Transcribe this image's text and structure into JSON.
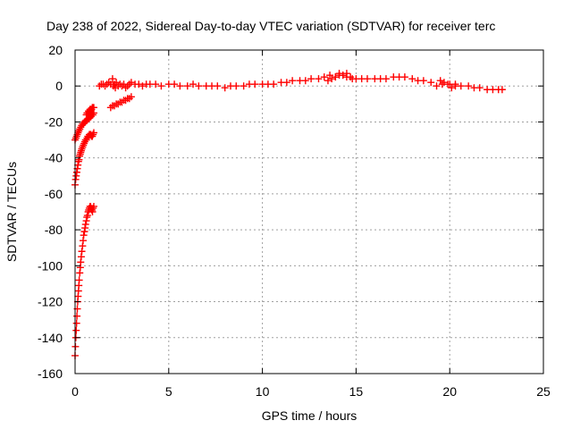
{
  "chart_data": {
    "type": "scatter",
    "title": "Day 238 of 2022, Sidereal Day-to-day VTEC variation (SDTVAR) for receiver terc",
    "xlabel": "GPS time / hours",
    "ylabel": "SDTVAR / TECUs",
    "xlim": [
      0,
      25
    ],
    "ylim": [
      -160,
      20
    ],
    "xticks": [
      0,
      5,
      10,
      15,
      20,
      25
    ],
    "yticks": [
      -160,
      -140,
      -120,
      -100,
      -80,
      -60,
      -40,
      -20,
      0,
      20
    ],
    "grid": true,
    "marker": "+",
    "color": "#ff0000",
    "series": [
      {
        "x": [
          0.0,
          0.02,
          0.04,
          0.06,
          0.08,
          0.1,
          0.12,
          0.14,
          0.16,
          0.18,
          0.2,
          0.22,
          0.25,
          0.28,
          0.3,
          0.33,
          0.36,
          0.4,
          0.43,
          0.46,
          0.5,
          0.53,
          0.56,
          0.6,
          0.63,
          0.66,
          0.7,
          0.73,
          0.76,
          0.8,
          0.83,
          0.86,
          0.9,
          0.93,
          0.96,
          1.0
        ],
        "y": [
          -150,
          -145,
          -140,
          -136,
          -132,
          -128,
          -124,
          -120,
          -117,
          -114,
          -111,
          -108,
          -104,
          -101,
          -98,
          -95,
          -92,
          -89,
          -86,
          -83,
          -81,
          -79,
          -77,
          -75,
          -73,
          -72,
          -70,
          -69,
          -68,
          -67,
          -67,
          -68,
          -69,
          -70,
          -68,
          -67
        ]
      },
      {
        "x": [
          0.0,
          0.03,
          0.06,
          0.09,
          0.12,
          0.15,
          0.18,
          0.21,
          0.24,
          0.27,
          0.3,
          0.33,
          0.36,
          0.4,
          0.44,
          0.48,
          0.52,
          0.56,
          0.6,
          0.64,
          0.68,
          0.72,
          0.76,
          0.8,
          0.84,
          0.88,
          0.92,
          0.96,
          1.0
        ],
        "y": [
          -55,
          -52,
          -50,
          -48,
          -46,
          -44,
          -42,
          -41,
          -39,
          -38,
          -37,
          -36,
          -35,
          -34,
          -33,
          -32,
          -31,
          -30,
          -30,
          -29,
          -28,
          -28,
          -27,
          -27,
          -27,
          -28,
          -28,
          -27,
          -26
        ]
      },
      {
        "x": [
          0.0,
          0.04,
          0.08,
          0.12,
          0.16,
          0.2,
          0.25,
          0.3,
          0.35,
          0.4,
          0.45,
          0.5,
          0.55,
          0.6,
          0.65,
          0.7,
          0.75,
          0.8,
          0.85,
          0.9,
          0.95,
          1.0
        ],
        "y": [
          -30,
          -29,
          -28,
          -27,
          -26,
          -25,
          -24,
          -23,
          -22,
          -21,
          -21,
          -20,
          -20,
          -19,
          -19,
          -18,
          -18,
          -17,
          -17,
          -16,
          -16,
          -15
        ]
      },
      {
        "x": [
          0.6,
          0.64,
          0.68,
          0.72,
          0.76,
          0.8,
          0.84,
          0.88,
          0.92,
          0.96,
          1.0
        ],
        "y": [
          -16,
          -15,
          -15,
          -14,
          -14,
          -13,
          -13,
          -13,
          -12,
          -12,
          -12
        ]
      },
      {
        "x": [
          1.9,
          2.0,
          2.1,
          2.2,
          2.3,
          2.4,
          2.5,
          2.6,
          2.7,
          2.8,
          2.9,
          3.0
        ],
        "y": [
          -12,
          -11,
          -11,
          -10,
          -10,
          -9,
          -9,
          -8,
          -8,
          -7,
          -7,
          -6
        ]
      },
      {
        "x": [
          1.3,
          1.4,
          1.5,
          1.6,
          1.7,
          1.8,
          1.9,
          2.0,
          2.05,
          2.1,
          2.15,
          2.2,
          2.3,
          2.4,
          2.5,
          2.6,
          2.7,
          2.8,
          2.9,
          3.0,
          3.2,
          3.4,
          3.6,
          3.8,
          4.0,
          4.3,
          4.6,
          5.0,
          5.3,
          5.6,
          6.0,
          6.3,
          6.6,
          7.0,
          7.3,
          7.6,
          8.0,
          8.3,
          8.6,
          9.0,
          9.3,
          9.6,
          10.0,
          10.3,
          10.6,
          11.0,
          11.3,
          11.6,
          12.0,
          12.3,
          12.6,
          13.0,
          13.3,
          13.6,
          13.9,
          14.1,
          14.3,
          14.5,
          14.8,
          15.0,
          15.3,
          15.6,
          16.0,
          16.3,
          16.6,
          17.0,
          17.3,
          17.6,
          18.0,
          18.3,
          18.6,
          19.0,
          19.3,
          19.6,
          20.0,
          20.3,
          20.6,
          21.0,
          21.3,
          21.6,
          22.0,
          22.3,
          22.6,
          22.8
        ],
        "y": [
          0,
          1,
          1,
          0,
          1,
          2,
          1,
          4,
          0,
          1,
          -1,
          2,
          0,
          1,
          0,
          1,
          -1,
          0,
          1,
          2,
          1,
          1,
          0,
          1,
          1,
          1,
          0,
          1,
          1,
          0,
          0,
          1,
          0,
          0,
          0,
          0,
          -1,
          0,
          0,
          0,
          1,
          1,
          1,
          1,
          1,
          2,
          2,
          3,
          3,
          3,
          4,
          4,
          5,
          6,
          5,
          6,
          6,
          5,
          4,
          4,
          4,
          4,
          4,
          4,
          4,
          5,
          5,
          5,
          4,
          3,
          3,
          2,
          0,
          1,
          1,
          1,
          0,
          0,
          -1,
          -1,
          -2,
          -2,
          -2,
          -2
        ]
      },
      {
        "x": [
          13.5,
          13.7,
          13.9,
          14.1,
          14.3,
          14.5,
          14.7
        ],
        "y": [
          3,
          4,
          5,
          7,
          6,
          7,
          5
        ]
      },
      {
        "x": [
          19.5,
          19.7,
          19.9,
          20.1,
          20.3
        ],
        "y": [
          3,
          2,
          1,
          -1,
          0
        ]
      }
    ]
  }
}
